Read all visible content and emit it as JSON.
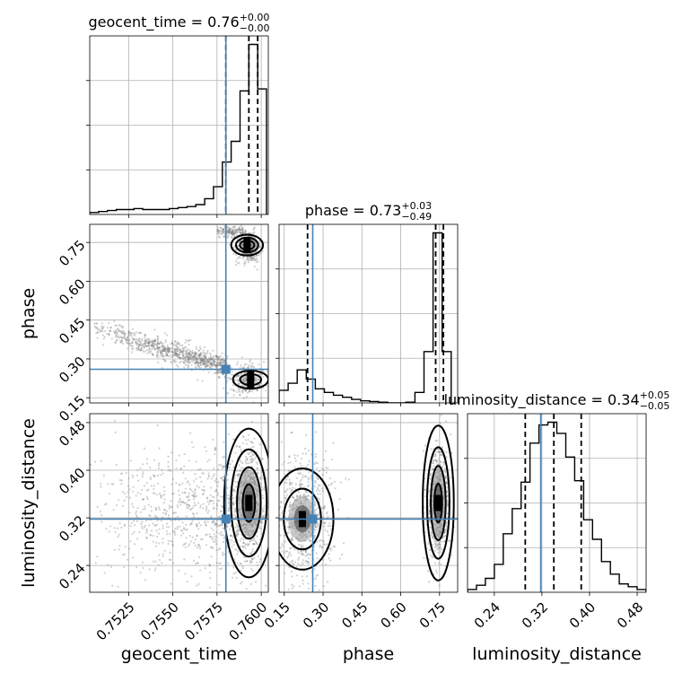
{
  "chart_data": {
    "type": "corner",
    "parameters": [
      "geocent_time",
      "phase",
      "luminosity_distance"
    ],
    "colors": {
      "truth": "#4682b4",
      "lines": "#000000",
      "scatter": "#7a7a7a"
    },
    "truths": {
      "geocent_time": 0.758,
      "phase": 0.26,
      "luminosity_distance": 0.318
    },
    "ranges": {
      "geocent_time": [
        0.7503,
        0.7604
      ],
      "phase": [
        0.13,
        0.82
      ],
      "luminosity_distance": [
        0.195,
        0.495
      ]
    },
    "ticks": {
      "geocent_time": [
        "0.7525",
        "0.7550",
        "0.7575",
        "0.7600"
      ],
      "phase": [
        "0.15",
        "0.30",
        "0.45",
        "0.60",
        "0.75"
      ],
      "luminosity_distance": [
        "0.24",
        "0.32",
        "0.40",
        "0.48"
      ]
    },
    "titles": {
      "geocent_time": {
        "text": "geocent_time = 0.76",
        "plus": "+0.00",
        "minus": "−0.00"
      },
      "phase": {
        "text": "phase = 0.73",
        "plus": "+0.03",
        "minus": "−0.49"
      },
      "luminosity_distance": {
        "text": "luminosity_distance = 0.34",
        "plus": "+0.05",
        "minus": "−0.05"
      }
    },
    "quantiles": {
      "geocent_time": [
        0.758,
        0.7593,
        0.7598
      ],
      "phase": [
        0.24,
        0.735,
        0.765
      ],
      "luminosity_distance": [
        0.292,
        0.34,
        0.386
      ]
    },
    "histograms": {
      "geocent_time": {
        "edges": [
          0.7503,
          0.7508,
          0.7513,
          0.7518,
          0.7523,
          0.7528,
          0.7533,
          0.7538,
          0.7543,
          0.7548,
          0.7553,
          0.7558,
          0.7563,
          0.7568,
          0.7573,
          0.7578,
          0.7583,
          0.7588,
          0.7593,
          0.7598,
          0.7603
        ],
        "counts": [
          2,
          3,
          4,
          5,
          5,
          6,
          5,
          5,
          5,
          6,
          7,
          8,
          10,
          16,
          28,
          53,
          74,
          125,
          172,
          127
        ]
      },
      "phase": {
        "edges": [
          0.13,
          0.165,
          0.2,
          0.235,
          0.27,
          0.305,
          0.34,
          0.375,
          0.41,
          0.445,
          0.48,
          0.515,
          0.55,
          0.585,
          0.62,
          0.655,
          0.69,
          0.725,
          0.76,
          0.795
        ],
        "counts": [
          18,
          28,
          47,
          34,
          20,
          15,
          11,
          8,
          5,
          3,
          2,
          1,
          0,
          0,
          1,
          15,
          73,
          242,
          73
        ]
      },
      "luminosity_distance": {
        "edges": [
          0.195,
          0.21,
          0.225,
          0.24,
          0.255,
          0.27,
          0.285,
          0.3,
          0.315,
          0.33,
          0.345,
          0.36,
          0.375,
          0.39,
          0.405,
          0.42,
          0.435,
          0.45,
          0.465,
          0.48,
          0.495
        ],
        "counts": [
          2,
          5,
          10,
          20,
          42,
          60,
          79,
          107,
          120,
          122,
          114,
          97,
          80,
          52,
          38,
          22,
          13,
          6,
          4,
          2
        ]
      }
    }
  }
}
